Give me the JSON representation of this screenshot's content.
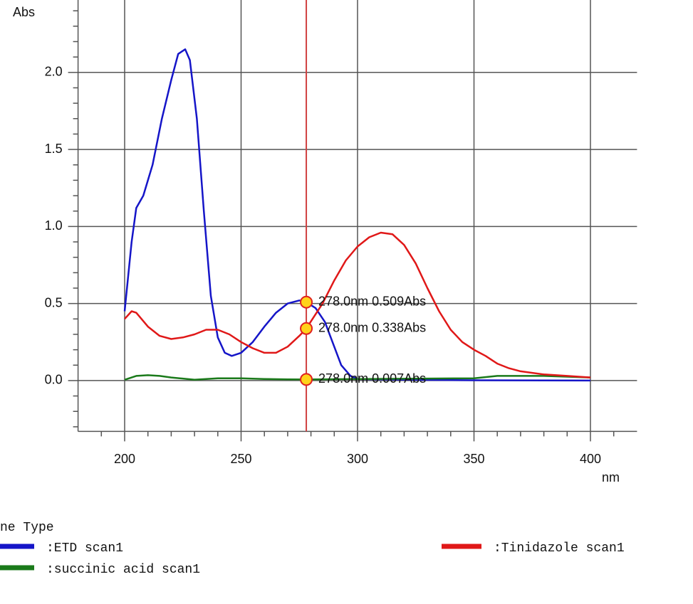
{
  "chart_data": {
    "type": "line",
    "y_label": "Abs",
    "x_label": "nm",
    "xlim": [
      180,
      420
    ],
    "ylim": [
      -0.33,
      2.47
    ],
    "xticks": [
      200,
      250,
      300,
      350,
      400
    ],
    "yticks": [
      {
        "value": 0,
        "label": "0.0"
      },
      0.5,
      {
        "value": 1,
        "label": "1.0"
      },
      1.5,
      {
        "value": 2,
        "label": "2.0"
      }
    ],
    "xminorticks": [
      190,
      210,
      220,
      230,
      240,
      260,
      270,
      280,
      290,
      310,
      320,
      330,
      340,
      360,
      370,
      380,
      390,
      410
    ],
    "yminorticks": [
      -0.3,
      -0.2,
      -0.1,
      0.1,
      0.2,
      0.3,
      0.4,
      0.6,
      0.7,
      0.8,
      0.9,
      1.1,
      1.2,
      1.3,
      1.4,
      1.6,
      1.7,
      1.8,
      1.9,
      2.1,
      2.2,
      2.3,
      2.4
    ],
    "grid": true,
    "legend_title": "ne Type",
    "series": [
      {
        "name": ":ETD scan1",
        "color": "#1515c8",
        "x": [
          200,
          203,
          205,
          208,
          212,
          216,
          220,
          223,
          226,
          228,
          231,
          234,
          237,
          240,
          243,
          246,
          250,
          255,
          260,
          265,
          270,
          275,
          278,
          282,
          286,
          290,
          293,
          297,
          300,
          320,
          350,
          400
        ],
        "values": [
          0.45,
          0.9,
          1.12,
          1.2,
          1.4,
          1.7,
          1.95,
          2.12,
          2.15,
          2.08,
          1.7,
          1.1,
          0.55,
          0.28,
          0.18,
          0.16,
          0.18,
          0.25,
          0.35,
          0.44,
          0.5,
          0.52,
          0.509,
          0.47,
          0.38,
          0.22,
          0.1,
          0.03,
          0.01,
          0.005,
          0.002,
          0.0
        ]
      },
      {
        "name": ":succinic acid scan1",
        "color": "#1a7a1a",
        "x": [
          200,
          205,
          210,
          215,
          220,
          230,
          240,
          250,
          260,
          270,
          278,
          300,
          350,
          360,
          380,
          400
        ],
        "values": [
          0.005,
          0.03,
          0.035,
          0.03,
          0.02,
          0.005,
          0.015,
          0.015,
          0.01,
          0.008,
          0.007,
          0.01,
          0.015,
          0.03,
          0.03,
          0.02
        ]
      },
      {
        "name": ":Tinidazole scan1",
        "color": "#e01818",
        "x": [
          200,
          203,
          205,
          210,
          215,
          220,
          225,
          230,
          235,
          240,
          245,
          250,
          255,
          260,
          265,
          270,
          275,
          278,
          285,
          290,
          295,
          300,
          305,
          310,
          315,
          320,
          325,
          330,
          335,
          340,
          345,
          350,
          355,
          360,
          365,
          370,
          380,
          390,
          400
        ],
        "values": [
          0.4,
          0.45,
          0.44,
          0.35,
          0.29,
          0.27,
          0.28,
          0.3,
          0.33,
          0.33,
          0.3,
          0.25,
          0.21,
          0.18,
          0.18,
          0.22,
          0.29,
          0.338,
          0.5,
          0.65,
          0.78,
          0.87,
          0.93,
          0.96,
          0.95,
          0.88,
          0.76,
          0.6,
          0.45,
          0.33,
          0.25,
          0.2,
          0.16,
          0.11,
          0.08,
          0.06,
          0.04,
          0.03,
          0.02
        ]
      }
    ],
    "cursor": {
      "x": 278,
      "color": "#d04040",
      "values": [
        0.509,
        0.338,
        0.007
      ],
      "value_labels": [
        "278.0nm 0.509Abs",
        "278.0nm 0.338Abs",
        "278.0nm 0.007Abs"
      ]
    }
  }
}
